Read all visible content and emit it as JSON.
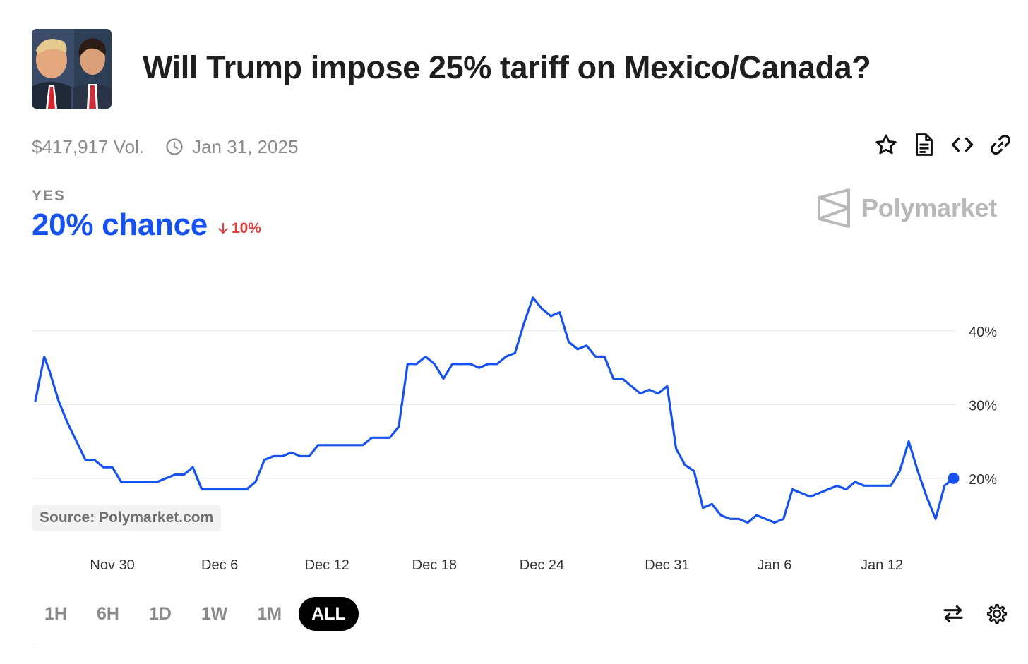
{
  "market": {
    "title": "Will Trump impose 25% tariff on Mexico/Canada?",
    "volume": "$417,917 Vol.",
    "end_date": "Jan 31, 2025",
    "outcome": "YES",
    "chance": "20% chance",
    "change": "10%",
    "change_direction": "down",
    "brand": "Polymarket"
  },
  "actions": [
    "star-icon",
    "document-icon",
    "embed-code-icon",
    "link-icon"
  ],
  "source": "Source: Polymarket.com",
  "time_ranges": [
    {
      "label": "1H",
      "active": false
    },
    {
      "label": "6H",
      "active": false
    },
    {
      "label": "1D",
      "active": false
    },
    {
      "label": "1W",
      "active": false
    },
    {
      "label": "1M",
      "active": false
    },
    {
      "label": "ALL",
      "active": true
    }
  ],
  "colors": {
    "line": "#1652f0",
    "down": "#e23b3b",
    "grid": "#e8e8e8"
  },
  "chart_data": {
    "type": "line",
    "title": "Will Trump impose 25% tariff on Mexico/Canada?",
    "xlabel": "",
    "ylabel": "",
    "x_unit": "days since Nov 26, 2024",
    "xlim": [
      0,
      51.6
    ],
    "ylim": [
      10.7,
      48.5
    ],
    "grid": true,
    "legend": "none",
    "x_ticks": [
      {
        "label": "Nov 30",
        "x": 4.5
      },
      {
        "label": "Dec 6",
        "x": 10.5
      },
      {
        "label": "Dec 12",
        "x": 16.5
      },
      {
        "label": "Dec 18",
        "x": 22.5
      },
      {
        "label": "Dec 24",
        "x": 28.5
      },
      {
        "label": "Dec 31",
        "x": 35.5
      },
      {
        "label": "Jan 6",
        "x": 41.5
      },
      {
        "label": "Jan 12",
        "x": 47.5
      }
    ],
    "y_ticks": [
      {
        "label": "20%",
        "y": 20
      },
      {
        "label": "30%",
        "y": 30
      },
      {
        "label": "40%",
        "y": 40
      }
    ],
    "series": [
      {
        "name": "Yes",
        "x": [
          0.2,
          0.7,
          1.0,
          1.5,
          2.0,
          2.5,
          3.0,
          3.5,
          4.0,
          4.5,
          5.0,
          5.5,
          6.0,
          6.5,
          7.0,
          7.5,
          8.0,
          8.5,
          9.0,
          9.5,
          10.0,
          10.5,
          11.0,
          11.5,
          12.0,
          12.5,
          13.0,
          13.5,
          14.0,
          14.5,
          15.0,
          15.5,
          16.0,
          16.5,
          17.0,
          17.5,
          18.0,
          18.5,
          19.0,
          19.5,
          20.0,
          20.5,
          21.0,
          21.5,
          22.0,
          22.5,
          23.0,
          23.5,
          24.0,
          24.5,
          25.0,
          25.5,
          26.0,
          26.5,
          27.0,
          27.5,
          28.0,
          28.5,
          29.0,
          29.5,
          30.0,
          30.5,
          31.0,
          31.5,
          32.0,
          32.5,
          33.0,
          33.5,
          34.0,
          34.5,
          35.0,
          35.5,
          36.0,
          36.5,
          37.0,
          37.5,
          38.0,
          38.5,
          39.0,
          39.5,
          40.0,
          40.5,
          41.0,
          41.5,
          42.0,
          42.5,
          43.0,
          43.5,
          44.0,
          44.5,
          45.0,
          45.5,
          46.0,
          46.5,
          47.0,
          47.5,
          48.0,
          48.5,
          49.0,
          49.5,
          50.0,
          50.5,
          51.0,
          51.5
        ],
        "y": [
          30.5,
          36.5,
          34.5,
          30.5,
          27.5,
          25.0,
          22.5,
          22.5,
          21.5,
          21.5,
          19.5,
          19.5,
          19.5,
          19.5,
          19.5,
          20.0,
          20.5,
          20.5,
          21.5,
          18.5,
          18.5,
          18.5,
          18.5,
          18.5,
          18.5,
          19.5,
          22.5,
          23.0,
          23.0,
          23.5,
          23.0,
          23.0,
          24.5,
          24.5,
          24.5,
          24.5,
          24.5,
          24.5,
          25.5,
          25.5,
          25.5,
          27.0,
          35.5,
          35.5,
          36.5,
          35.5,
          33.5,
          35.5,
          35.5,
          35.5,
          35.0,
          35.5,
          35.5,
          36.5,
          37.0,
          41.0,
          44.5,
          43.0,
          42.0,
          42.5,
          38.5,
          37.5,
          38.0,
          36.5,
          36.5,
          33.5,
          33.5,
          32.5,
          31.5,
          32.0,
          31.5,
          32.5,
          24.0,
          21.8,
          21.0,
          16.0,
          16.5,
          15.0,
          14.5,
          14.5,
          14.0,
          15.0,
          14.5,
          14.0,
          14.5,
          18.5,
          18.0,
          17.5,
          18.0,
          18.5,
          19.0,
          18.5,
          19.5,
          19.0,
          19.0,
          19.0,
          19.0,
          21.0,
          25.0,
          21.0,
          17.5,
          14.5,
          19.0,
          20.0
        ]
      }
    ],
    "last_value": 20
  }
}
